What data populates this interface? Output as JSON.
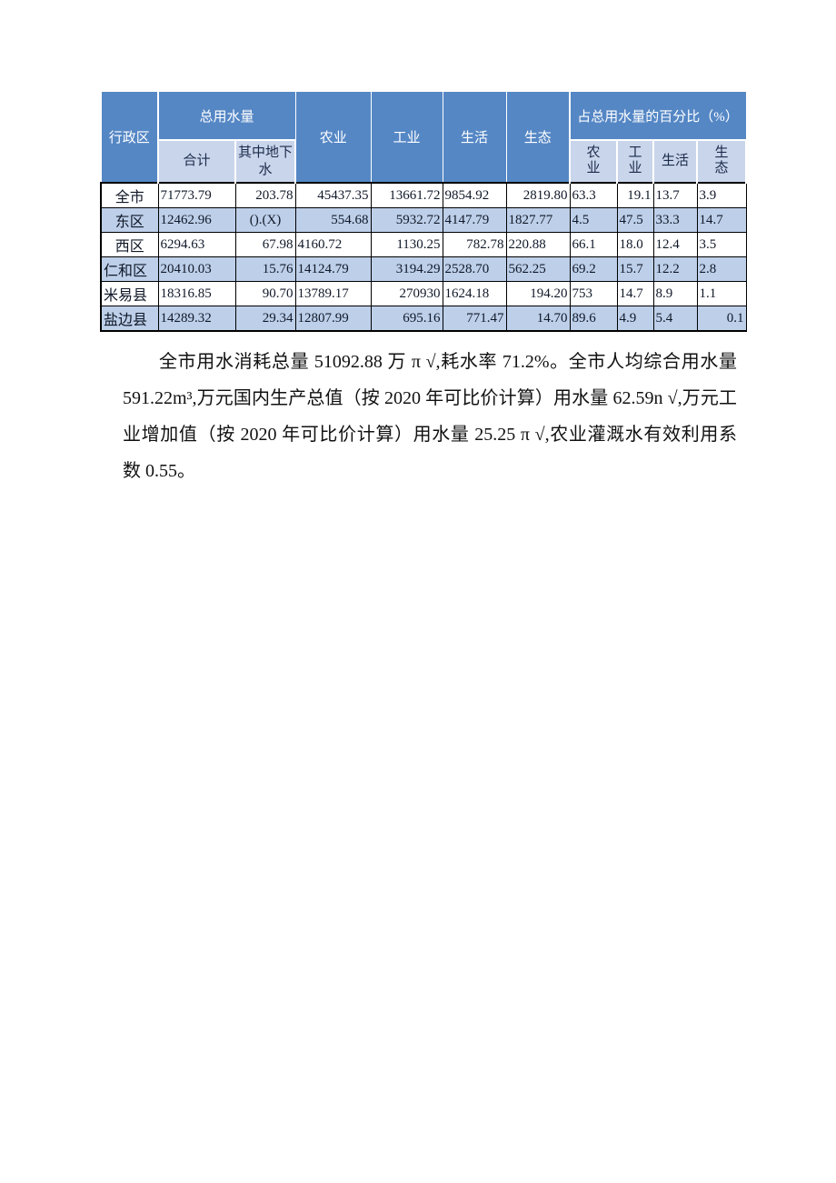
{
  "table": {
    "colors": {
      "header_bg": "#5587c5",
      "subheader_bg": "#c9d5eb",
      "stripe_bg": "#bdcfe9",
      "data_border": "#000000",
      "header_text": "#ffffff"
    },
    "header": {
      "admin_region": "行政区",
      "total_water": "总用水量",
      "total_sub": [
        "合计",
        "其中地下水"
      ],
      "mid_cols": [
        "农业",
        "工业",
        "生活",
        "生态"
      ],
      "percent_title": "占总用水量的百分比（%）",
      "percent_sub": [
        "农业",
        "工业",
        "生活",
        "生态"
      ]
    },
    "rows": [
      {
        "label": "全市",
        "label_align": "c",
        "striped": false,
        "cells": [
          [
            "71773.79",
            "l"
          ],
          [
            "203.78",
            "r"
          ],
          [
            "45437.35",
            "r"
          ],
          [
            "13661.72",
            "r"
          ],
          [
            "9854.92",
            "l"
          ],
          [
            "2819.80",
            "r"
          ],
          [
            "63.3",
            "l"
          ],
          [
            "19.1",
            "r"
          ],
          [
            "13.7",
            "l"
          ],
          [
            "3.9",
            "l"
          ]
        ]
      },
      {
        "label": "东区",
        "label_align": "c",
        "striped": true,
        "cells": [
          [
            "12462.96",
            "l"
          ],
          [
            "().(X)",
            "c"
          ],
          [
            "554.68",
            "r"
          ],
          [
            "5932.72",
            "r"
          ],
          [
            "4147.79",
            "l"
          ],
          [
            "1827.77",
            "l"
          ],
          [
            "4.5",
            "l"
          ],
          [
            "47.5",
            "l"
          ],
          [
            "33.3",
            "l"
          ],
          [
            "14.7",
            "l"
          ]
        ]
      },
      {
        "label": "西区",
        "label_align": "c",
        "striped": false,
        "cells": [
          [
            "6294.63",
            "l"
          ],
          [
            "67.98",
            "r"
          ],
          [
            "4160.72",
            "l"
          ],
          [
            "1130.25",
            "r"
          ],
          [
            "782.78",
            "r"
          ],
          [
            "220.88",
            "l"
          ],
          [
            "66.1",
            "l"
          ],
          [
            "18.0",
            "l"
          ],
          [
            "12.4",
            "l"
          ],
          [
            "3.5",
            "l"
          ]
        ]
      },
      {
        "label": "仁和区",
        "label_align": "l",
        "striped": true,
        "cells": [
          [
            "20410.03",
            "l"
          ],
          [
            "15.76",
            "r"
          ],
          [
            "14124.79",
            "l"
          ],
          [
            "3194.29",
            "r"
          ],
          [
            "2528.70",
            "l"
          ],
          [
            "562.25",
            "l"
          ],
          [
            "69.2",
            "l"
          ],
          [
            "15.7",
            "l"
          ],
          [
            "12.2",
            "l"
          ],
          [
            "2.8",
            "l"
          ]
        ]
      },
      {
        "label": "米易县",
        "label_align": "l",
        "striped": false,
        "cells": [
          [
            "18316.85",
            "l"
          ],
          [
            "90.70",
            "r"
          ],
          [
            "13789.17",
            "l"
          ],
          [
            "270930",
            "r"
          ],
          [
            "1624.18",
            "l"
          ],
          [
            "194.20",
            "r"
          ],
          [
            "753",
            "l"
          ],
          [
            "14.7",
            "l"
          ],
          [
            "8.9",
            "l"
          ],
          [
            "1.1",
            "l"
          ]
        ]
      },
      {
        "label": "盐边县",
        "label_align": "l",
        "striped": true,
        "cells": [
          [
            "14289.32",
            "l"
          ],
          [
            "29.34",
            "r"
          ],
          [
            "12807.99",
            "l"
          ],
          [
            "695.16",
            "r"
          ],
          [
            "771.47",
            "r"
          ],
          [
            "14.70",
            "r"
          ],
          [
            "89.6",
            "l"
          ],
          [
            "4.9",
            "l"
          ],
          [
            "5.4",
            "l"
          ],
          [
            "0.1",
            "r"
          ]
        ]
      }
    ]
  },
  "paragraph": {
    "text": "全市用水消耗总量 51092.88 万 π √,耗水率 71.2%。全市人均综合用水量 591.22m³,万元国内生产总值（按 2020 年可比价计算）用水量 62.59n √,万元工业增加值（按 2020 年可比价计算）用水量 25.25 π √,农业灌溉水有效利用系数 0.55。"
  }
}
